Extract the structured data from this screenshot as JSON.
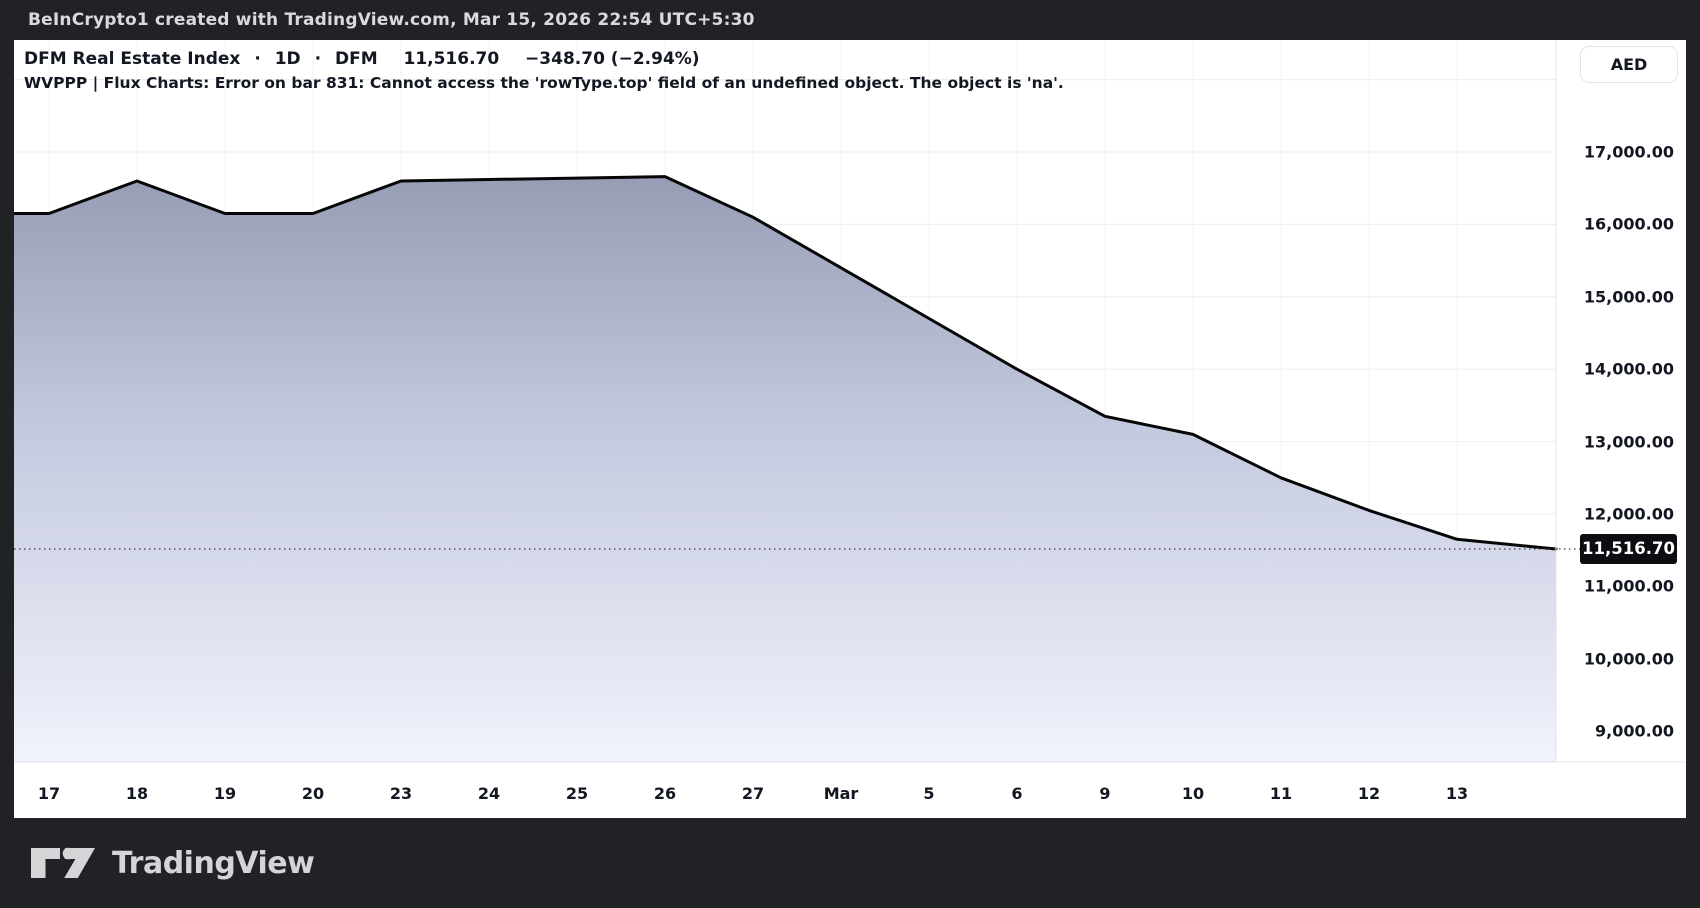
{
  "top_bar": {
    "attribution": "BeInCrypto1 created with TradingView.com, Mar 15, 2026 22:54 UTC+5:30"
  },
  "header": {
    "symbol_title": "DFM Real Estate Index",
    "separator": "·",
    "timeframe": "1D",
    "exchange": "DFM",
    "price": "11,516.70",
    "change": "−348.70 (−2.94%)",
    "indicator_error": "WVPPP | Flux Charts: Error on bar 831: Cannot access the 'rowType.top' field of an undefined object. The object is 'na'."
  },
  "price_axis": {
    "currency_button": "AED"
  },
  "chart_data": {
    "type": "area",
    "title": "DFM Real Estate Index",
    "series_name": "DFM",
    "categories": [
      "17",
      "18",
      "19",
      "20",
      "23",
      "24",
      "25",
      "26",
      "27",
      "Mar",
      "5",
      "6",
      "9",
      "10",
      "11",
      "12",
      "13"
    ],
    "values": [
      16150,
      16600,
      16150,
      16150,
      16600,
      16620,
      16640,
      16660,
      16100,
      15400,
      14700,
      14000,
      13350,
      13100,
      12500,
      12050,
      11650
    ],
    "last_price": 11516.7,
    "last_price_label": "11,516.70",
    "y_axis": {
      "ticks": [
        {
          "value": 17000,
          "label": "17,000.00"
        },
        {
          "value": 16000,
          "label": "16,000.00"
        },
        {
          "value": 15000,
          "label": "15,000.00"
        },
        {
          "value": 14000,
          "label": "14,000.00"
        },
        {
          "value": 13000,
          "label": "13,000.00"
        },
        {
          "value": 12000,
          "label": "12,000.00"
        },
        {
          "value": 11000,
          "label": "11,000.00"
        },
        {
          "value": 10000,
          "label": "10,000.00"
        },
        {
          "value": 9000,
          "label": "9,000.00"
        }
      ],
      "unlabeled_gridlines": [
        18000
      ],
      "range_top": 18200,
      "range_bottom": 8550
    },
    "grid": true,
    "legend_position": "none",
    "line_color": "#070707",
    "fill_top_color": "#8f96ae",
    "fill_bottom_color": "#f1f3fc"
  },
  "footer": {
    "brand": "TradingView"
  },
  "colors": {
    "frame_background": "#212226",
    "panel_background": "#ffffff",
    "text_dark": "#131722",
    "text_light": "#d9dadb",
    "grid_horizontal": "#ebedf1",
    "grid_vertical": "#f2f3f7",
    "axis_border": "#e0e3eb",
    "badge_background": "#0c0d10",
    "dotted_price_line": "#363a45"
  }
}
